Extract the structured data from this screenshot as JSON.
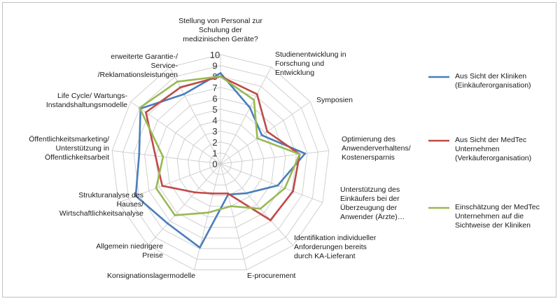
{
  "chart_data": {
    "type": "radar",
    "title": "",
    "rlim": [
      0,
      10
    ],
    "ticks": [
      "0",
      "1",
      "2",
      "3",
      "4",
      "5",
      "6",
      "7",
      "8",
      "9",
      "10"
    ],
    "grid": true,
    "legend_position": "right",
    "categories": [
      [
        "Stellung von Personal zur",
        "Schulung der",
        "medizinischen Geräte?"
      ],
      [
        "Studienentwicklung in",
        "Forschung und",
        "Entwicklung"
      ],
      [
        "Symposien"
      ],
      [
        "Optimierung des",
        "Anwenderverhaltens/",
        "Kostenersparnis"
      ],
      [
        "Unterstützung des",
        "Einkäufers bei der",
        "Überzeugung der",
        "Anwender (Ärzte)…"
      ],
      [
        "Identifikation individueller",
        "Anforderungen bereits",
        "durch KA-Lieferant"
      ],
      [
        "E-procurement"
      ],
      [
        "Konsignationslagermodelle"
      ],
      [
        "Allgemein niedrigere",
        "Preise"
      ],
      [
        "Strukturanalyse des",
        "Hauses/",
        "Wirtschaftlichkeitsanalyse"
      ],
      [
        "Öffentlichkeitsmarketing/",
        "Unterstützung in",
        "Öffentlichkeitsarbeit"
      ],
      [
        "Life Cycle/ Wartungs-",
        "Instandshaltungsmodelle"
      ],
      [
        "erweiterte Garantie-/",
        "Service-",
        "/Reklamationsleistungen"
      ]
    ],
    "series": [
      {
        "name": [
          "Aus Sicht der Kliniken",
          "(Einkäuferorganisation)"
        ],
        "color": "#4a7ebb",
        "values": [
          8.3,
          5.8,
          4.6,
          7.8,
          5.6,
          3.6,
          2.9,
          7.9,
          7.3,
          8.3,
          7.5,
          8.9,
          7.2
        ]
      },
      {
        "name": [
          "Aus Sicht der MedTec",
          "Unternehmen",
          "(Verkäuferorganisation)"
        ],
        "color": "#be4b48",
        "values": [
          8.0,
          7.2,
          5.2,
          7.3,
          7.1,
          6.9,
          2.8,
          2.8,
          3.5,
          5.7,
          6.0,
          8.3,
          7.9
        ]
      },
      {
        "name": [
          "Einschätzung der MedTec",
          "Unternehmen auf die",
          "Sichtweise der Kliniken"
        ],
        "color": "#98b954",
        "values": [
          8.0,
          6.6,
          4.1,
          7.3,
          6.3,
          5.5,
          4.0,
          4.6,
          6.3,
          6.3,
          5.3,
          9.0,
          8.5
        ]
      }
    ]
  }
}
